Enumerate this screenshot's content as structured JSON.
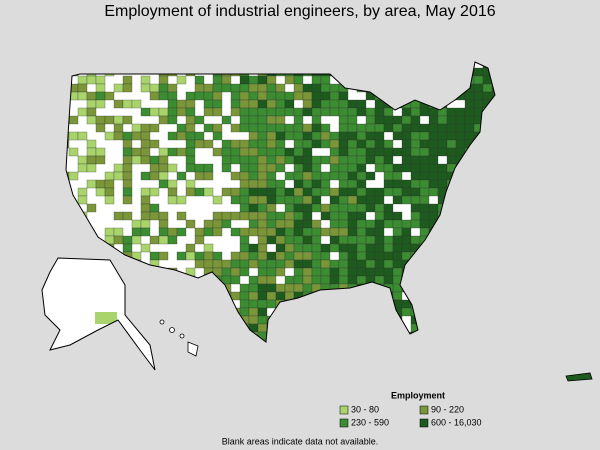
{
  "title": "Employment of industrial engineers, by area, May 2016",
  "legend": {
    "title": "Employment",
    "items": [
      {
        "label": "30 - 80",
        "color": "#a9d46c"
      },
      {
        "label": "90 - 220",
        "color": "#7a9638"
      },
      {
        "label": "230 - 590",
        "color": "#3c8c32"
      },
      {
        "label": "600 - 16,030",
        "color": "#1d5a1d"
      }
    ]
  },
  "note": "Blank areas indicate data not available."
}
